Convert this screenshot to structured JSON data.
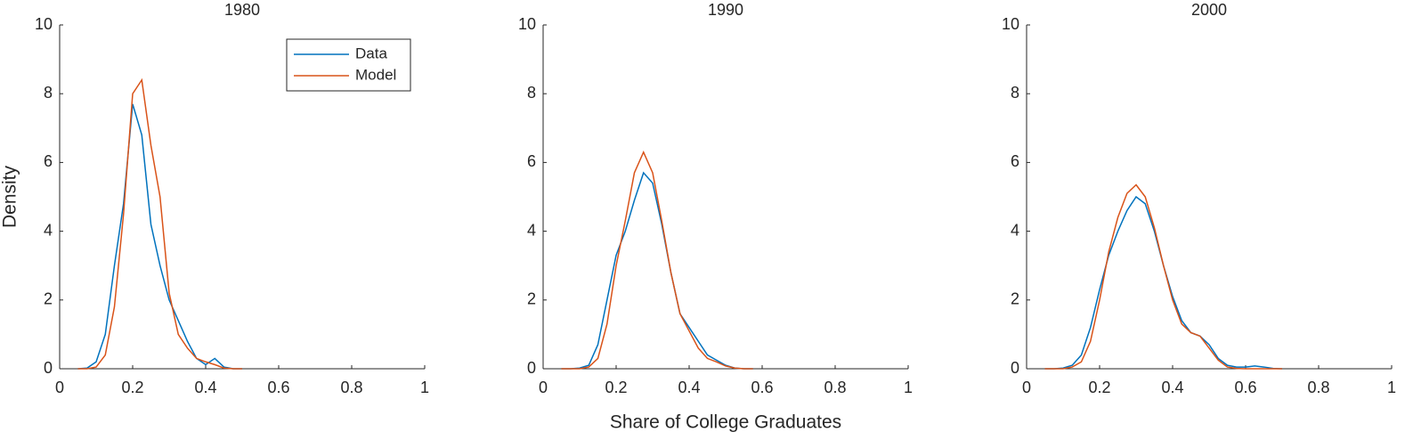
{
  "chart_data": [
    {
      "type": "line",
      "title": "1980",
      "ylabel": "Density",
      "legend": "north-east",
      "xlim": [
        0,
        1
      ],
      "xticks": [
        0,
        0.2,
        0.4,
        0.6,
        0.8,
        1
      ],
      "ylim": [
        0,
        10
      ],
      "yticks": [
        0,
        2,
        4,
        6,
        8,
        10
      ],
      "x": [
        0.05,
        0.075,
        0.1,
        0.125,
        0.15,
        0.175,
        0.2,
        0.225,
        0.25,
        0.275,
        0.3,
        0.325,
        0.35,
        0.375,
        0.4,
        0.425,
        0.45,
        0.475,
        0.5
      ],
      "series": [
        {
          "name": "Data",
          "color": "#0072bd",
          "values": [
            0,
            0.02,
            0.2,
            1.0,
            3.0,
            4.8,
            7.7,
            6.8,
            4.2,
            3.0,
            2.0,
            1.4,
            0.8,
            0.3,
            0.12,
            0.3,
            0.05,
            0,
            0
          ]
        },
        {
          "name": "Model",
          "color": "#d95319",
          "values": [
            0,
            0,
            0.05,
            0.4,
            1.8,
            4.5,
            8.0,
            8.4,
            6.5,
            5.0,
            2.2,
            1.0,
            0.6,
            0.3,
            0.2,
            0.12,
            0.02,
            0,
            0
          ]
        }
      ]
    },
    {
      "type": "line",
      "title": "1990",
      "xlabel": "Share of College Graduates",
      "xlim": [
        0,
        1
      ],
      "xticks": [
        0,
        0.2,
        0.4,
        0.6,
        0.8,
        1
      ],
      "ylim": [
        0,
        10
      ],
      "yticks": [
        0,
        2,
        4,
        6,
        8,
        10
      ],
      "x": [
        0.05,
        0.075,
        0.1,
        0.125,
        0.15,
        0.175,
        0.2,
        0.225,
        0.25,
        0.275,
        0.3,
        0.325,
        0.35,
        0.375,
        0.4,
        0.425,
        0.45,
        0.475,
        0.5,
        0.525,
        0.55,
        0.575
      ],
      "series": [
        {
          "color": "#0072bd",
          "values": [
            0,
            0,
            0.02,
            0.1,
            0.7,
            2.0,
            3.3,
            4.0,
            4.9,
            5.7,
            5.4,
            4.2,
            2.8,
            1.6,
            1.2,
            0.8,
            0.4,
            0.25,
            0.1,
            0.02,
            0,
            0
          ]
        },
        {
          "color": "#d95319",
          "values": [
            0,
            0,
            0,
            0.05,
            0.3,
            1.3,
            3.0,
            4.3,
            5.7,
            6.3,
            5.7,
            4.3,
            2.8,
            1.6,
            1.1,
            0.6,
            0.3,
            0.2,
            0.08,
            0.02,
            0,
            0
          ]
        }
      ]
    },
    {
      "type": "line",
      "title": "2000",
      "xlim": [
        0,
        1
      ],
      "xticks": [
        0,
        0.2,
        0.4,
        0.6,
        0.8,
        1
      ],
      "ylim": [
        0,
        10
      ],
      "yticks": [
        0,
        2,
        4,
        6,
        8,
        10
      ],
      "x": [
        0.05,
        0.075,
        0.1,
        0.125,
        0.15,
        0.175,
        0.2,
        0.225,
        0.25,
        0.275,
        0.3,
        0.325,
        0.35,
        0.375,
        0.4,
        0.425,
        0.45,
        0.475,
        0.5,
        0.525,
        0.55,
        0.575,
        0.6,
        0.625,
        0.65,
        0.675,
        0.7
      ],
      "series": [
        {
          "color": "#0072bd",
          "values": [
            0,
            0,
            0.02,
            0.1,
            0.4,
            1.2,
            2.3,
            3.3,
            4.0,
            4.6,
            5.0,
            4.8,
            4.0,
            3.0,
            2.1,
            1.4,
            1.05,
            0.95,
            0.7,
            0.3,
            0.1,
            0.05,
            0.05,
            0.08,
            0.05,
            0.01,
            0
          ]
        },
        {
          "color": "#d95319",
          "values": [
            0,
            0,
            0,
            0.05,
            0.2,
            0.8,
            2.0,
            3.4,
            4.4,
            5.1,
            5.35,
            5.0,
            4.1,
            3.0,
            2.0,
            1.3,
            1.05,
            0.95,
            0.6,
            0.25,
            0.05,
            0.01,
            0,
            0,
            0,
            0,
            0
          ]
        }
      ]
    }
  ]
}
